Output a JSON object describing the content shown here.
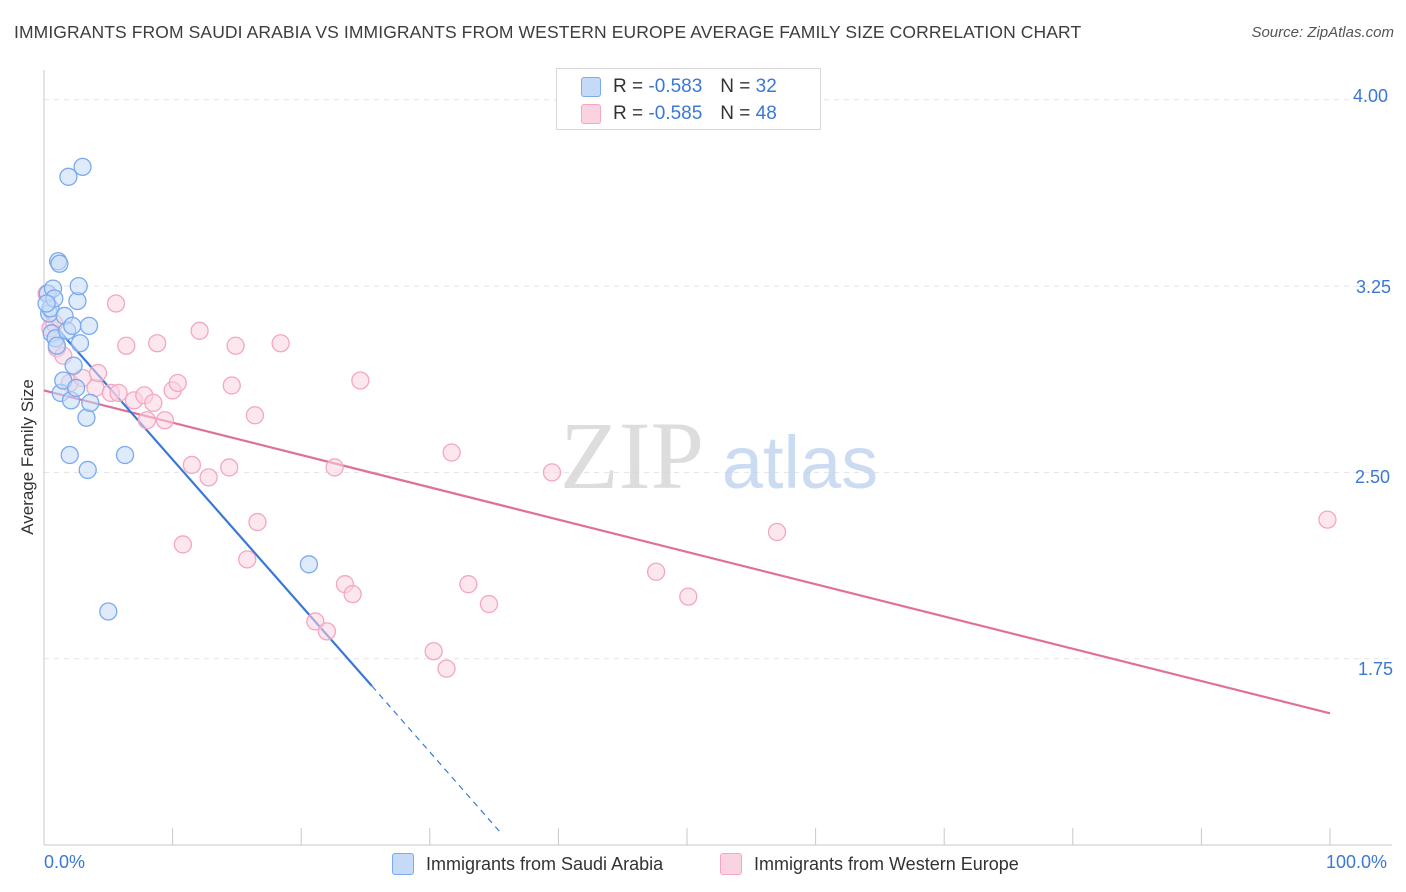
{
  "header": {
    "title": "IMMIGRANTS FROM SAUDI ARABIA VS IMMIGRANTS FROM WESTERN EUROPE AVERAGE FAMILY SIZE CORRELATION CHART",
    "source": "Source: ZipAtlas.com"
  },
  "watermark": {
    "zip": "ZIP",
    "atlas": "atlas"
  },
  "legend": {
    "rows": [
      {
        "r_label": "R =",
        "r_value": "-0.583",
        "n_label": "N =",
        "n_value": "32"
      },
      {
        "r_label": "R =",
        "r_value": "-0.585",
        "n_label": "N =",
        "n_value": "48"
      }
    ]
  },
  "chart_data": {
    "type": "scatter",
    "title": "IMMIGRANTS FROM SAUDI ARABIA VS IMMIGRANTS FROM WESTERN EUROPE AVERAGE FAMILY SIZE CORRELATION CHART",
    "xlabel": "",
    "ylabel": "Average Family Size",
    "xlim": [
      0,
      100
    ],
    "ylim": [
      1.0,
      4.12
    ],
    "x_tick_labels": [
      "0.0%",
      "100.0%"
    ],
    "y_ticks": [
      1.75,
      2.5,
      3.25,
      4.0
    ],
    "y_tick_labels": [
      "1.75",
      "2.50",
      "3.25",
      "4.00"
    ],
    "grid": true,
    "series": [
      {
        "name": "Immigrants from Saudi Arabia",
        "color": "#7aaaf0",
        "line_color": "#3b78d6",
        "R": -0.583,
        "N": 32,
        "points": [
          [
            0.3,
            3.22
          ],
          [
            0.4,
            3.14
          ],
          [
            0.5,
            3.16
          ],
          [
            0.6,
            3.06
          ],
          [
            0.7,
            3.24
          ],
          [
            0.8,
            3.2
          ],
          [
            0.9,
            3.04
          ],
          [
            1.0,
            3.01
          ],
          [
            1.1,
            3.35
          ],
          [
            1.2,
            3.34
          ],
          [
            1.3,
            2.82
          ],
          [
            1.5,
            2.87
          ],
          [
            1.6,
            3.13
          ],
          [
            1.8,
            3.07
          ],
          [
            1.9,
            3.69
          ],
          [
            2.0,
            2.57
          ],
          [
            2.1,
            2.79
          ],
          [
            2.2,
            3.09
          ],
          [
            2.3,
            2.93
          ],
          [
            2.5,
            2.84
          ],
          [
            2.6,
            3.19
          ],
          [
            2.7,
            3.25
          ],
          [
            2.8,
            3.02
          ],
          [
            3.0,
            3.73
          ],
          [
            3.3,
            2.72
          ],
          [
            3.4,
            2.51
          ],
          [
            3.5,
            3.09
          ],
          [
            3.6,
            2.78
          ],
          [
            5.0,
            1.94
          ],
          [
            6.3,
            2.57
          ],
          [
            20.6,
            2.13
          ],
          [
            0.2,
            3.18
          ]
        ],
        "trend": {
          "x0": 0,
          "y0": 3.14,
          "x1": 25.5,
          "y1": 1.64,
          "dash_to_x": 35.5,
          "dash_to_y": 1.05
        }
      },
      {
        "name": "Immigrants from Western Europe",
        "color": "#f4a6c2",
        "line_color": "#e0709a",
        "R": -0.585,
        "N": 48,
        "points": [
          [
            0.2,
            3.22
          ],
          [
            0.5,
            3.08
          ],
          [
            0.8,
            3.1
          ],
          [
            1.0,
            3.0
          ],
          [
            1.5,
            2.97
          ],
          [
            2.0,
            2.86
          ],
          [
            3.0,
            2.88
          ],
          [
            4.0,
            2.84
          ],
          [
            4.2,
            2.9
          ],
          [
            5.2,
            2.82
          ],
          [
            5.6,
            3.18
          ],
          [
            5.8,
            2.82
          ],
          [
            6.4,
            3.01
          ],
          [
            7.0,
            2.79
          ],
          [
            7.8,
            2.81
          ],
          [
            8.0,
            2.71
          ],
          [
            8.5,
            2.78
          ],
          [
            8.8,
            3.02
          ],
          [
            9.4,
            2.71
          ],
          [
            10.0,
            2.83
          ],
          [
            10.4,
            2.86
          ],
          [
            10.8,
            2.21
          ],
          [
            11.5,
            2.53
          ],
          [
            12.1,
            3.07
          ],
          [
            12.8,
            2.48
          ],
          [
            14.4,
            2.52
          ],
          [
            14.6,
            2.85
          ],
          [
            14.9,
            3.01
          ],
          [
            15.8,
            2.15
          ],
          [
            16.4,
            2.73
          ],
          [
            16.6,
            2.3
          ],
          [
            18.4,
            3.02
          ],
          [
            21.1,
            1.9
          ],
          [
            22.0,
            1.86
          ],
          [
            22.6,
            2.52
          ],
          [
            23.4,
            2.05
          ],
          [
            24.0,
            2.01
          ],
          [
            24.6,
            2.87
          ],
          [
            30.3,
            1.78
          ],
          [
            31.3,
            1.71
          ],
          [
            31.7,
            2.58
          ],
          [
            33.0,
            2.05
          ],
          [
            34.6,
            1.97
          ],
          [
            39.5,
            2.5
          ],
          [
            47.6,
            2.1
          ],
          [
            50.1,
            2.0
          ],
          [
            57.0,
            2.26
          ],
          [
            99.8,
            2.31
          ]
        ],
        "trend": {
          "x0": 0,
          "y0": 2.83,
          "x1": 100,
          "y1": 1.53
        }
      }
    ]
  },
  "bottom_legend": {
    "saudi_label": "Immigrants from Saudi Arabia",
    "weu_label": "Immigrants from Western Europe"
  },
  "colors": {
    "saudi_fill": "#c5daf7",
    "saudi_edge": "#7aaaf0",
    "weu_fill": "#f9d3e1",
    "weu_edge": "#f4a6c2",
    "tick_label": "#3b78d6",
    "grid": "#e3e3e3"
  }
}
